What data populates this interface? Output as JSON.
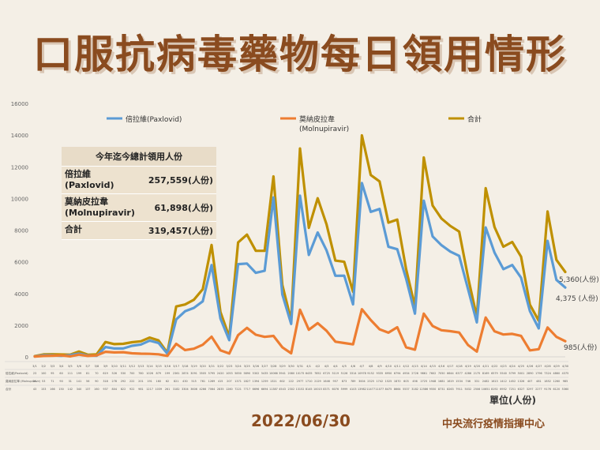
{
  "page": {
    "title": "口服抗病毒藥物每日領用情形",
    "date": "2022/06/30",
    "source": "中央流行疫情指揮中心",
    "unit": "單位(人份)"
  },
  "summary": {
    "title": "今年迄今總計領用人份",
    "rows": [
      {
        "label": "倍拉維\n(Paxlovid)",
        "value": "257,559(人份)"
      },
      {
        "label": "莫納皮拉韋\n(Molnupiravir)",
        "value": "61,898(人份)"
      },
      {
        "label": "合計",
        "value": "319,457(人份)"
      }
    ]
  },
  "chart_data": {
    "type": "line",
    "ylim": [
      0,
      16000
    ],
    "yticks": [
      0,
      2000,
      4000,
      6000,
      8000,
      10000,
      12000,
      14000,
      16000
    ],
    "grid": false,
    "legend_position": "top",
    "categories": [
      "3/1",
      "3/2",
      "3/3",
      "3/4",
      "3/5",
      "3/6",
      "3/7",
      "3/8",
      "3/9",
      "3/10",
      "3/11",
      "3/12",
      "3/13",
      "3/14",
      "3/15",
      "3/16",
      "3/17",
      "3/18",
      "3/19",
      "3/20",
      "3/21",
      "3/22",
      "3/23",
      "3/24",
      "3/25",
      "3/26",
      "3/27",
      "3/28",
      "3/29",
      "3/30",
      "3/31",
      "4/1",
      "4/2",
      "4/3",
      "4/4",
      "4/5",
      "4/6",
      "4/7",
      "4/8",
      "4/9",
      "4/10",
      "4/11",
      "4/12",
      "4/13",
      "4/14",
      "4/15",
      "4/16",
      "4/17",
      "4/18",
      "4/19",
      "4/20",
      "4/21",
      "4/22",
      "4/23",
      "4/24",
      "4/25",
      "4/26",
      "4/27",
      "4/28",
      "4/29",
      "4/30",
      "5/1",
      "5/2",
      "5/3",
      "5/4",
      "5/5",
      "5/6",
      "5/7",
      "5/8",
      "5/9",
      "5/10",
      "5/11",
      "5/12",
      "5/13",
      "5/14",
      "5/15",
      "5/16",
      "5/17",
      "5/18",
      "5/19",
      "5/20",
      "5/21",
      "5/22",
      "5/23",
      "5/24",
      "5/25",
      "5/26",
      "5/27",
      "5/28",
      "5/29",
      "5/30",
      "5/31",
      "6/1",
      "6/2",
      "6/3",
      "6/4",
      "6/5",
      "6/6",
      "6/7",
      "6/8",
      "6/9",
      "6/10",
      "6/11",
      "6/12",
      "6/13",
      "6/14",
      "6/15",
      "6/16",
      "6/17",
      "6/18",
      "6/19",
      "6/20",
      "6/21",
      "6/22",
      "6/23",
      "6/24",
      "6/25",
      "6/26",
      "6/27",
      "6/28",
      "6/29",
      "6/30"
    ],
    "x_labels_shown": [
      "3/1",
      "3/2",
      "3/3",
      "3/4",
      "3/5",
      "3/6",
      "3/7",
      "3/8",
      "3/9",
      "3/10",
      "3/11",
      "3/12",
      "3/13",
      "3/14",
      "3/15",
      "3/16",
      "3/17",
      "3/18",
      "3/19",
      "3/20",
      "3/21",
      "3/22",
      "3/23",
      "3/24",
      "3/25",
      "3/26",
      "3/27",
      "3/28",
      "3/29",
      "3/30",
      "3/31",
      "4/1",
      "4/2",
      "4/3",
      "4/4",
      "4/5",
      "4/6",
      "4/7",
      "4/8",
      "4/9",
      "4/10",
      "4/11",
      "4/12",
      "4/13",
      "4/14",
      "4/15",
      "4/16",
      "4/17",
      "4/18",
      "4/19",
      "4/20",
      "4/21",
      "4/22",
      "4/23",
      "4/24",
      "4/25",
      "4/26",
      "4/27",
      "4/28",
      "4/29",
      "4/30"
    ],
    "series": [
      {
        "name": "倍拉維(Paxlovid)",
        "color": "#5b9bd5",
        "key_x": [
          0,
          4,
          8,
          12,
          16,
          18,
          20,
          22,
          24,
          26,
          28,
          30,
          32,
          34,
          36,
          38,
          40,
          42,
          44,
          46,
          48,
          50,
          52,
          54,
          56,
          58,
          60
        ],
        "key_y": [
          23,
          100,
          95,
          60,
          111,
          81,
          70,
          619,
          530,
          700,
          780,
          1026,
          200,
          2300,
          3000,
          3500,
          5800,
          2420,
          1050,
          5850,
          5900,
          5200,
          5400,
          10000,
          3600,
          2080,
          10200
        ],
        "points": [
          [
            0,
            23
          ],
          [
            1,
            100
          ],
          [
            2,
            95
          ],
          [
            3,
            60
          ],
          [
            4,
            111
          ],
          [
            5,
            199
          ],
          [
            6,
            81
          ],
          [
            7,
            70
          ],
          [
            8,
            619
          ],
          [
            9,
            526
          ],
          [
            10,
            530
          ],
          [
            11,
            700
          ],
          [
            12,
            780
          ],
          [
            13,
            1026
          ],
          [
            14,
            879
          ],
          [
            15,
            199
          ],
          [
            16,
            2361
          ],
          [
            17,
            2874
          ],
          [
            18,
            3091
          ],
          [
            19,
            3505
          ],
          [
            20,
            5795
          ],
          [
            21,
            2420
          ],
          [
            22,
            1053
          ],
          [
            23,
            5850
          ],
          [
            24,
            5890
          ],
          [
            25,
            5302
          ],
          [
            26,
            5435
          ],
          [
            27,
            10066
          ],
          [
            28,
            3941
          ],
          [
            29,
            2080
          ],
          [
            30,
            10175
          ],
          [
            31,
            6435
          ],
          [
            32,
            7852
          ],
          [
            33,
            6725
          ],
          [
            34,
            5119
          ],
          [
            35,
            5126
          ],
          [
            36,
            3314
          ],
          [
            37,
            10978
          ],
          [
            38,
            9152
          ],
          [
            39,
            9335
          ],
          [
            40,
            6950
          ],
          [
            41,
            6794
          ],
          [
            42,
            4934
          ],
          [
            43,
            2726
          ],
          [
            44,
            9861
          ],
          [
            45,
            7602
          ],
          [
            46,
            7050
          ],
          [
            47,
            6644
          ],
          [
            48,
            6377
          ],
          [
            49,
            4286
          ],
          [
            50,
            2175
          ],
          [
            51,
            8169
          ],
          [
            52,
            6579
          ],
          [
            53,
            5540
          ],
          [
            54,
            5799
          ],
          [
            55,
            5001
          ],
          [
            56,
            2890
          ],
          [
            57,
            1796
          ],
          [
            58,
            7324
          ],
          [
            59,
            4860
          ],
          [
            60,
            4375
          ]
        ]
      },
      {
        "name": "莫納皮拉韋\n(Molnupiravir)",
        "color": "#ed7d31",
        "points": [
          [
            0,
            20
          ],
          [
            1,
            53
          ],
          [
            2,
            71
          ],
          [
            3,
            90
          ],
          [
            4,
            31
          ],
          [
            5,
            141
          ],
          [
            6,
            56
          ],
          [
            7,
            90
          ],
          [
            8,
            318
          ],
          [
            9,
            278
          ],
          [
            10,
            292
          ],
          [
            11,
            222
          ],
          [
            12,
            201
          ],
          [
            13,
            191
          ],
          [
            14,
            160
          ],
          [
            15,
            62
          ],
          [
            16,
            821
          ],
          [
            17,
            430
          ],
          [
            18,
            515
          ],
          [
            19,
            761
          ],
          [
            20,
            1269
          ],
          [
            21,
            415
          ],
          [
            22,
            207
          ],
          [
            23,
            1371
          ],
          [
            24,
            1827
          ],
          [
            25,
            1394
          ],
          [
            26,
            1259
          ],
          [
            27,
            1321
          ],
          [
            28,
            602
          ],
          [
            29,
            222
          ],
          [
            30,
            2977
          ],
          [
            31,
            1710
          ],
          [
            32,
            2129
          ],
          [
            33,
            1646
          ],
          [
            34,
            957
          ],
          [
            35,
            873
          ],
          [
            36,
            789
          ],
          [
            37,
            3004
          ],
          [
            38,
            2325
          ],
          [
            39,
            1742
          ],
          [
            40,
            1525
          ],
          [
            41,
            1870
          ],
          [
            42,
            603
          ],
          [
            43,
            456
          ],
          [
            44,
            2725
          ],
          [
            45,
            1948
          ],
          [
            46,
            1681
          ],
          [
            47,
            1619
          ],
          [
            48,
            1534
          ],
          [
            49,
            746
          ],
          [
            50,
            331
          ],
          [
            51,
            2482
          ],
          [
            52,
            1613
          ],
          [
            53,
            1412
          ],
          [
            54,
            1452
          ],
          [
            55,
            1326
          ],
          [
            56,
            407
          ],
          [
            57,
            481
          ],
          [
            58,
            1852
          ],
          [
            59,
            1260
          ],
          [
            60,
            985
          ]
        ]
      },
      {
        "name": "合計",
        "color": "#bf9000",
        "points": [
          [
            0,
            43
          ],
          [
            1,
            153
          ],
          [
            2,
            166
          ],
          [
            3,
            150
          ],
          [
            4,
            142
          ],
          [
            5,
            340
          ],
          [
            6,
            137
          ],
          [
            7,
            160
          ],
          [
            8,
            937
          ],
          [
            9,
            804
          ],
          [
            10,
            822
          ],
          [
            11,
            922
          ],
          [
            12,
            981
          ],
          [
            13,
            1217
          ],
          [
            14,
            1039
          ],
          [
            15,
            261
          ],
          [
            16,
            3182
          ],
          [
            17,
            3304
          ],
          [
            18,
            3606
          ],
          [
            19,
            4266
          ],
          [
            20,
            7064
          ],
          [
            21,
            2835
          ],
          [
            22,
            1260
          ],
          [
            23,
            7221
          ],
          [
            24,
            7717
          ],
          [
            25,
            6696
          ],
          [
            26,
            6694
          ],
          [
            27,
            11387
          ],
          [
            28,
            4543
          ],
          [
            29,
            2302
          ],
          [
            30,
            13152
          ],
          [
            31,
            8145
          ],
          [
            32,
            10015
          ],
          [
            33,
            8371
          ],
          [
            34,
            6076
          ],
          [
            35,
            5999
          ],
          [
            36,
            4103
          ],
          [
            37,
            13982
          ],
          [
            38,
            11477
          ],
          [
            39,
            11077
          ],
          [
            40,
            8475
          ],
          [
            41,
            8664
          ],
          [
            42,
            5537
          ],
          [
            43,
            3182
          ],
          [
            44,
            12586
          ],
          [
            45,
            9550
          ],
          [
            46,
            8731
          ],
          [
            47,
            8263
          ],
          [
            48,
            7911
          ],
          [
            49,
            5032
          ],
          [
            50,
            2506
          ],
          [
            51,
            10651
          ],
          [
            52,
            8192
          ],
          [
            53,
            6952
          ],
          [
            54,
            7251
          ],
          [
            55,
            6327
          ],
          [
            56,
            3297
          ],
          [
            57,
            2277
          ],
          [
            58,
            9176
          ],
          [
            59,
            6120
          ],
          [
            60,
            5360
          ]
        ]
      }
    ],
    "end_labels": [
      {
        "series": 2,
        "text": "5,360(人份)"
      },
      {
        "series": 0,
        "text": "4,375 (人份)"
      },
      {
        "series": 1,
        "text": "985(人份)"
      }
    ],
    "table_row_labels": [
      "倍拉維(Paxlovid)",
      "莫納皮拉韋\n(Molnupiravir)",
      "合計"
    ]
  }
}
